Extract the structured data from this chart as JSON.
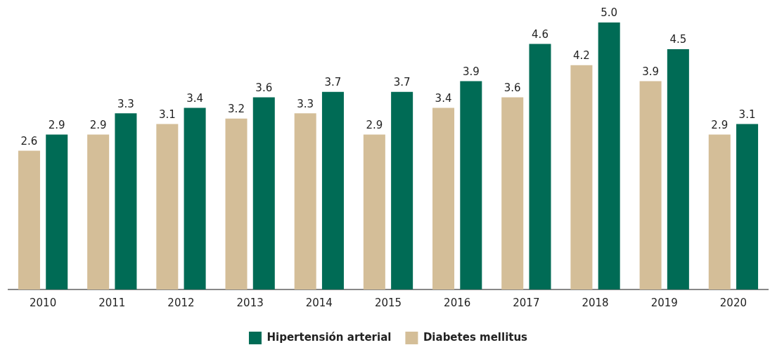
{
  "chart_data": {
    "type": "bar",
    "categories": [
      "2010",
      "2011",
      "2012",
      "2013",
      "2014",
      "2015",
      "2016",
      "2017",
      "2018",
      "2019",
      "2020"
    ],
    "series": [
      {
        "name": "Diabetes mellitus",
        "color": "#d4be98",
        "values": [
          2.6,
          2.9,
          3.1,
          3.2,
          3.3,
          2.9,
          3.4,
          3.6,
          4.2,
          3.9,
          2.9
        ],
        "value_labels": [
          "2.6",
          "2.9",
          "3.1",
          "3.2",
          "3.3",
          "2.9",
          "3.4",
          "3.6",
          "4.2",
          "3.9",
          "2.9"
        ]
      },
      {
        "name": "Hipertensión arterial",
        "color": "#006b55",
        "values": [
          2.9,
          3.3,
          3.4,
          3.6,
          3.7,
          3.7,
          3.9,
          4.6,
          5.0,
          4.5,
          3.1
        ],
        "value_labels": [
          "2.9",
          "3.3",
          "3.4",
          "3.6",
          "3.7",
          "3.7",
          "3.9",
          "4.6",
          "5.0",
          "4.5",
          "3.1"
        ]
      }
    ],
    "grid": false,
    "legend": "bottom"
  }
}
